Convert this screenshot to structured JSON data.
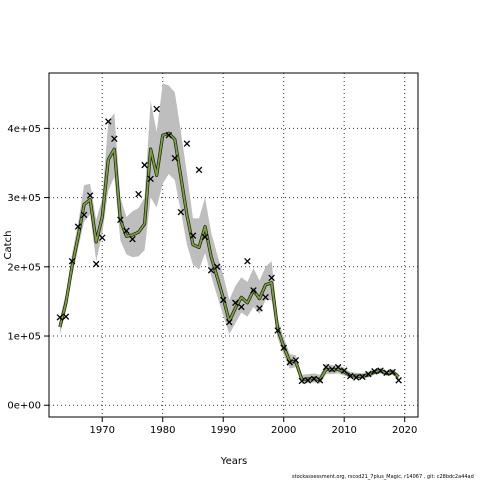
{
  "chart_data": {
    "type": "line",
    "xlabel": "Years",
    "ylabel": "Catch",
    "xlim": [
      1961.2,
      2022.2
    ],
    "ylim": [
      -17000,
      480000
    ],
    "xticks": [
      1970,
      1980,
      1990,
      2000,
      2010,
      2020
    ],
    "yticks": [
      0,
      100000,
      200000,
      300000,
      400000
    ],
    "ytick_labels": [
      "0e+00",
      "1e+05",
      "2e+05",
      "3e+05",
      "4e+05"
    ],
    "grid": true,
    "band_color": "#bebebe",
    "line_colors": [
      "#1b1b1b",
      "#7aa236"
    ],
    "point_marker": "x",
    "years": [
      1963,
      1964,
      1965,
      1966,
      1967,
      1968,
      1969,
      1970,
      1971,
      1972,
      1973,
      1974,
      1975,
      1976,
      1977,
      1978,
      1979,
      1980,
      1981,
      1982,
      1983,
      1984,
      1985,
      1986,
      1987,
      1988,
      1989,
      1990,
      1991,
      1992,
      1993,
      1994,
      1995,
      1996,
      1997,
      1998,
      1999,
      2000,
      2001,
      2002,
      2003,
      2004,
      2005,
      2006,
      2007,
      2008,
      2009,
      2010,
      2011,
      2012,
      2013,
      2014,
      2015,
      2016,
      2017,
      2018,
      2019
    ],
    "estimate": [
      113000,
      148000,
      200000,
      243000,
      290000,
      297000,
      236000,
      272000,
      355000,
      370000,
      268000,
      244000,
      246000,
      250000,
      262000,
      370000,
      332000,
      390000,
      393000,
      384000,
      330000,
      275000,
      232000,
      228000,
      258000,
      215000,
      185000,
      155000,
      121000,
      140000,
      156000,
      148000,
      166000,
      154000,
      174000,
      177000,
      110000,
      85000,
      63000,
      63000,
      37000,
      38000,
      39000,
      37000,
      52000,
      51000,
      52000,
      48000,
      43000,
      42000,
      42000,
      44000,
      48000,
      50000,
      46000,
      48000,
      41000
    ],
    "upper": [
      125000,
      162000,
      218000,
      262000,
      318000,
      320000,
      268000,
      298000,
      410000,
      422000,
      300000,
      272000,
      280000,
      285000,
      300000,
      440000,
      395000,
      465000,
      462000,
      452000,
      395000,
      335000,
      270000,
      270000,
      300000,
      250000,
      218000,
      188000,
      152000,
      172000,
      185000,
      178000,
      198000,
      180000,
      200000,
      208000,
      125000,
      98000,
      74000,
      72000,
      44000,
      45000,
      46000,
      44000,
      60000,
      58000,
      58000,
      54000,
      48000,
      47000,
      46000,
      49000,
      52000,
      54000,
      50000,
      52000,
      45000
    ],
    "lower": [
      102000,
      136000,
      186000,
      226000,
      265000,
      276000,
      208000,
      248000,
      310000,
      330000,
      238000,
      218000,
      214000,
      215000,
      224000,
      300000,
      286000,
      320000,
      334000,
      325000,
      280000,
      232000,
      203000,
      196000,
      220000,
      187000,
      158000,
      130000,
      103000,
      118000,
      134000,
      128000,
      142000,
      132000,
      152000,
      152000,
      97000,
      73000,
      53000,
      55000,
      31000,
      32000,
      33000,
      31000,
      45000,
      45000,
      46000,
      43000,
      39000,
      38000,
      38000,
      40000,
      44000,
      46000,
      42000,
      44000,
      37000
    ],
    "observed_years": [
      1963,
      1964,
      1965,
      1966,
      1967,
      1968,
      1969,
      1970,
      1971,
      1972,
      1973,
      1974,
      1975,
      1976,
      1977,
      1978,
      1979,
      1981,
      1982,
      1983,
      1984,
      1985,
      1986,
      1987,
      1988,
      1989,
      1990,
      1991,
      1992,
      1993,
      1994,
      1995,
      1996,
      1997,
      1998,
      1999,
      2000,
      2001,
      2002,
      2003,
      2004,
      2005,
      2006,
      2007,
      2008,
      2009,
      2010,
      2011,
      2012,
      2013,
      2014,
      2015,
      2016,
      2017,
      2018,
      2019
    ],
    "observed": [
      127000,
      128000,
      208000,
      258000,
      275000,
      303000,
      204000,
      242000,
      410000,
      385000,
      268000,
      252000,
      240000,
      305000,
      347000,
      327000,
      428000,
      390000,
      357000,
      279000,
      378000,
      245000,
      340000,
      243000,
      195000,
      200000,
      152000,
      120000,
      148000,
      142000,
      208000,
      166000,
      140000,
      156000,
      184000,
      108000,
      83000,
      62000,
      65000,
      35000,
      36000,
      38000,
      36000,
      55000,
      52000,
      55000,
      50000,
      42000,
      40000,
      41000,
      45000,
      49000,
      50000,
      47000,
      48000,
      36000
    ]
  },
  "footer_text": "stockassessment.org, rscod21_7plus_Magic, r14067 , git: c28bdc2a44ad"
}
